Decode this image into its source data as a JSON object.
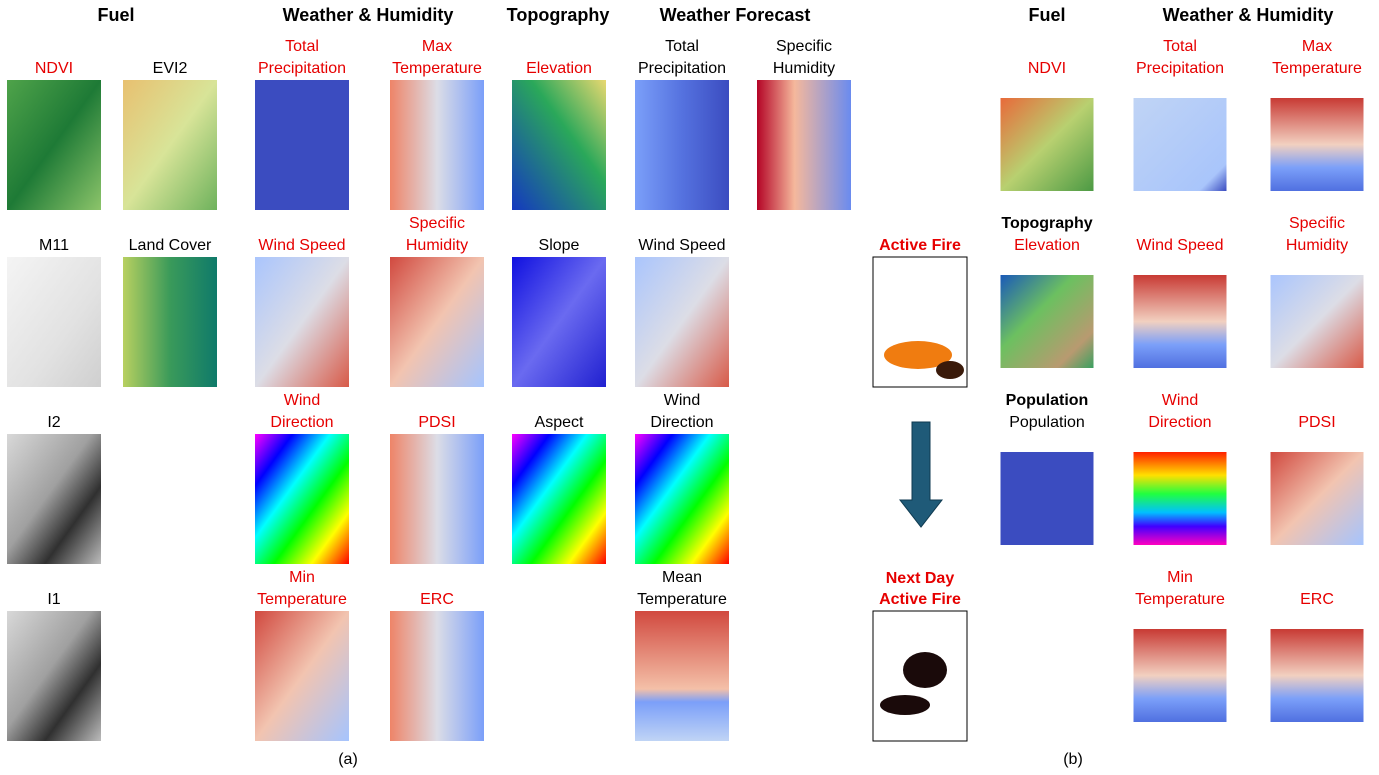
{
  "panel_a": {
    "headers": [
      "Fuel",
      "Weather & Humidity",
      "Topography",
      "Weather Forecast"
    ],
    "tiles": [
      {
        "label": [
          "NDVI"
        ],
        "color": "#e60000"
      },
      {
        "label": [
          "EVI2"
        ],
        "color": "#000000"
      },
      {
        "label": [
          "Total",
          "Precipitation"
        ],
        "color": "#e60000"
      },
      {
        "label": [
          "Max",
          "Temperature"
        ],
        "color": "#e60000"
      },
      {
        "label": [
          "Elevation"
        ],
        "color": "#e60000"
      },
      {
        "label": [
          "Total",
          "Precipitation"
        ],
        "color": "#000000"
      },
      {
        "label": [
          "Specific",
          "Humidity"
        ],
        "color": "#000000"
      },
      {
        "label": [
          "M11"
        ],
        "color": "#000000"
      },
      {
        "label": [
          "Land Cover"
        ],
        "color": "#000000"
      },
      {
        "label": [
          "Wind Speed"
        ],
        "color": "#e60000"
      },
      {
        "label": [
          "Specific",
          "Humidity"
        ],
        "color": "#e60000"
      },
      {
        "label": [
          "Slope"
        ],
        "color": "#000000"
      },
      {
        "label": [
          "Wind Speed"
        ],
        "color": "#000000"
      },
      {
        "label": [
          "I2"
        ],
        "color": "#000000"
      },
      {
        "label": [
          "Wind",
          "Direction"
        ],
        "color": "#e60000"
      },
      {
        "label": [
          "PDSI"
        ],
        "color": "#e60000"
      },
      {
        "label": [
          "Aspect"
        ],
        "color": "#000000"
      },
      {
        "label": [
          "Wind",
          "Direction"
        ],
        "color": "#000000"
      },
      {
        "label": [
          "I1"
        ],
        "color": "#000000"
      },
      {
        "label": [
          "Min",
          "Temperature"
        ],
        "color": "#e60000"
      },
      {
        "label": [
          "ERC"
        ],
        "color": "#e60000"
      },
      {
        "label": [
          "Mean",
          "Temperature"
        ],
        "color": "#000000"
      }
    ],
    "caption": "(a)"
  },
  "center": {
    "active_fire": [
      "Active Fire"
    ],
    "next_day_active_fire": [
      "Next Day",
      "Active Fire"
    ],
    "color": "#e60000"
  },
  "panel_b": {
    "headers": [
      "Fuel",
      "Weather & Humidity"
    ],
    "tiles": [
      {
        "label": [
          "NDVI"
        ],
        "color": "#e60000"
      },
      {
        "label": [
          "Total",
          "Precipitation"
        ],
        "color": "#e60000"
      },
      {
        "label": [
          "Max",
          "Temperature"
        ],
        "color": "#e60000"
      },
      {
        "heading": "Topography",
        "label": [
          "Elevation"
        ],
        "color": "#e60000"
      },
      {
        "label": [
          "Wind Speed"
        ],
        "color": "#e60000"
      },
      {
        "label": [
          "Specific",
          "Humidity"
        ],
        "color": "#e60000"
      },
      {
        "heading": "Population",
        "label": [
          "Population"
        ],
        "color": "#000000"
      },
      {
        "label": [
          "Wind",
          "Direction"
        ],
        "color": "#e60000"
      },
      {
        "label": [
          "PDSI"
        ],
        "color": "#e60000"
      },
      {
        "label": [
          "Min",
          "Temperature"
        ],
        "color": "#e60000"
      },
      {
        "label": [
          "ERC"
        ],
        "color": "#e60000"
      }
    ],
    "caption": "(b)"
  }
}
